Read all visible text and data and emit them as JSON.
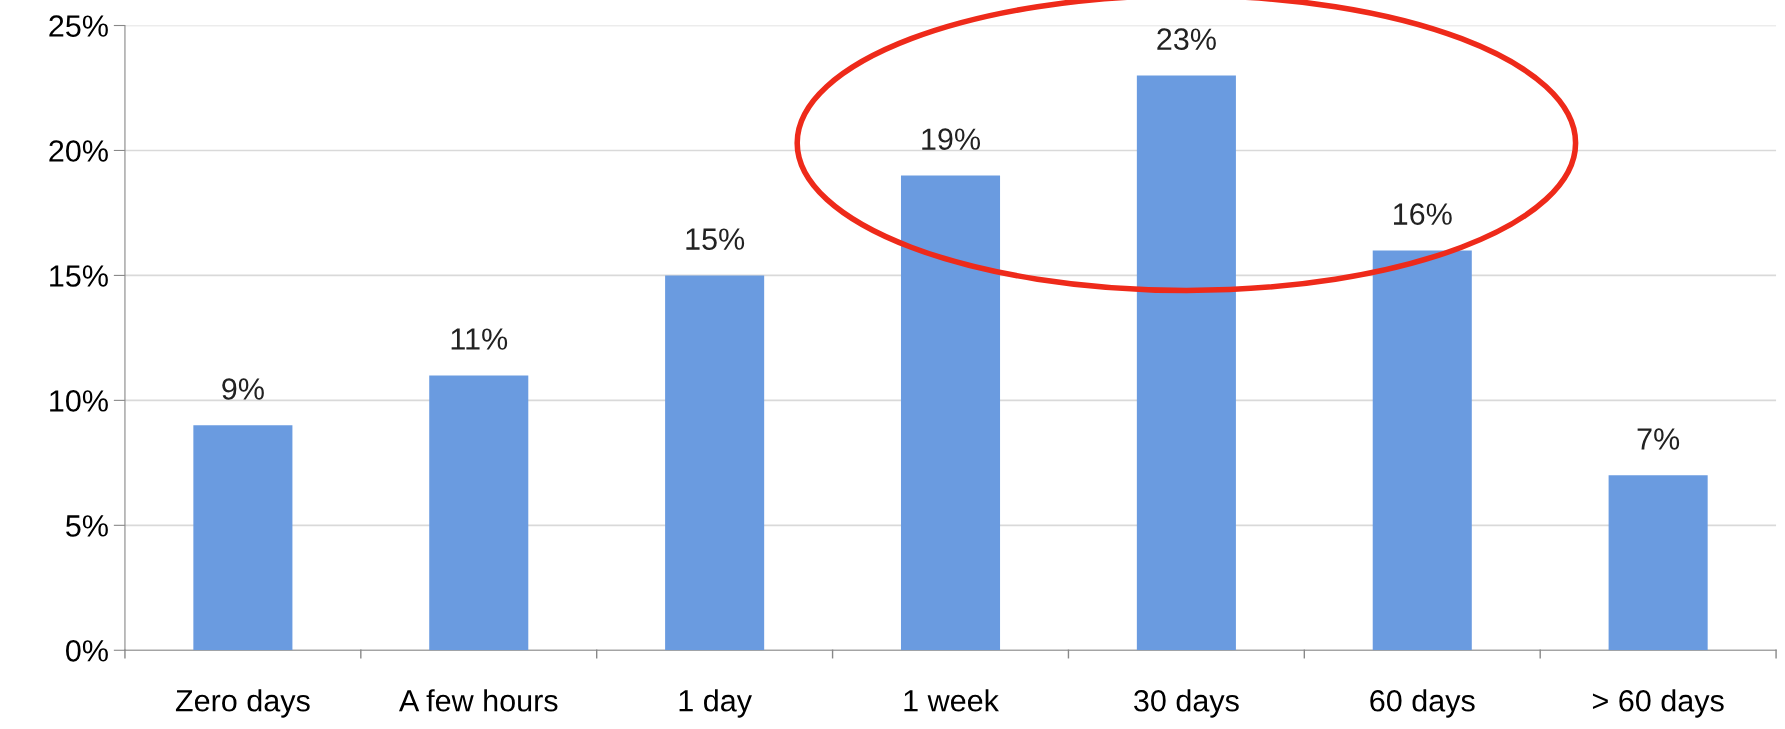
{
  "chart_data": {
    "type": "bar",
    "categories": [
      "Zero days",
      "A few hours",
      "1 day",
      "1 week",
      "30 days",
      "60 days",
      "> 60 days"
    ],
    "values": [
      9,
      11,
      15,
      19,
      23,
      16,
      7
    ],
    "value_labels": [
      "9%",
      "11%",
      "15%",
      "19%",
      "23%",
      "16%",
      "7%"
    ],
    "color": "#6a9be0",
    "ylim": [
      0,
      25
    ],
    "yticks": [
      {
        "value": 0,
        "label": "0%"
      },
      {
        "value": 5,
        "label": "5%"
      },
      {
        "value": 10,
        "label": "10%"
      },
      {
        "value": 15,
        "label": "15%"
      },
      {
        "value": 20,
        "label": "20%"
      },
      {
        "value": 25,
        "label": "25%"
      }
    ],
    "grid": "y"
  }
}
